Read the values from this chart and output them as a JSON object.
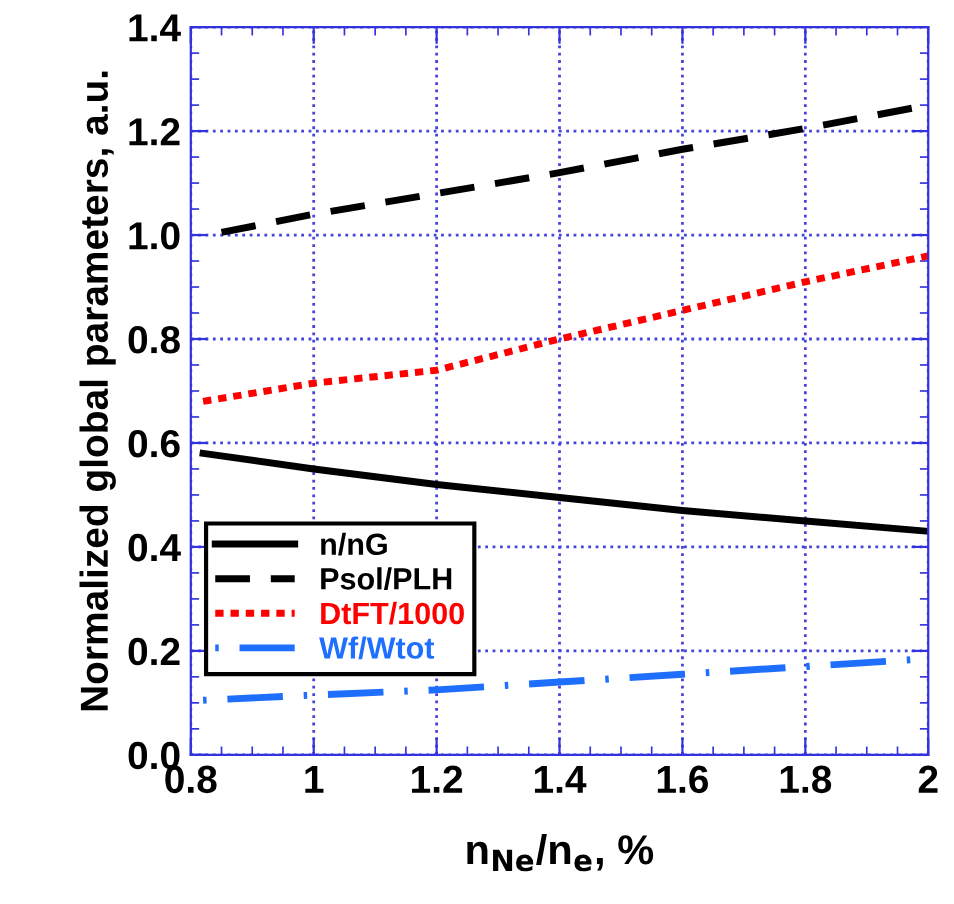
{
  "chart_data": {
    "type": "line",
    "xlabel": "n$_{Ne}$/n$_{e}$, %",
    "ylabel": "Normalized global parameters, a.u.",
    "xlim": [
      0.8,
      2
    ],
    "ylim": [
      0,
      1.4
    ],
    "xticks": [
      {
        "value": 0.8,
        "label": "0.8"
      },
      1,
      1.2,
      1.4,
      1.6,
      1.8,
      2
    ],
    "yticks": [
      {
        "value": 0,
        "label": "0.0"
      },
      0.2,
      0.4,
      0.6,
      0.8,
      {
        "value": 1,
        "label": "1.0"
      },
      1.2,
      1.4
    ],
    "grid": true,
    "legend": "left",
    "series": [
      {
        "name": "n/nG",
        "color": "#000000",
        "line_style": "solid",
        "x": [
          0.82,
          1.0,
          1.2,
          1.4,
          1.6,
          1.8,
          2.0
        ],
        "values": [
          0.58,
          0.55,
          0.52,
          0.495,
          0.47,
          0.45,
          0.43
        ]
      },
      {
        "name": "Psol/PLH",
        "color": "#000000",
        "line_style": "dashed",
        "x": [
          0.85,
          1.0,
          1.2,
          1.4,
          1.6,
          1.8,
          2.0
        ],
        "values": [
          1.005,
          1.04,
          1.08,
          1.12,
          1.165,
          1.205,
          1.25
        ]
      },
      {
        "name": "DtFT/1000",
        "color": "#ff0000",
        "line_style": "dotted",
        "x": [
          0.82,
          1.0,
          1.2,
          1.4,
          1.6,
          1.8,
          2.0
        ],
        "values": [
          0.68,
          0.715,
          0.74,
          0.8,
          0.855,
          0.91,
          0.96
        ]
      },
      {
        "name": "Wf/Wtot",
        "color": "#1f6fff",
        "line_style": "dashdot",
        "x": [
          0.82,
          1.0,
          1.2,
          1.4,
          1.6,
          1.8,
          2.0
        ],
        "values": [
          0.105,
          0.115,
          0.125,
          0.14,
          0.155,
          0.17,
          0.185
        ]
      }
    ]
  }
}
